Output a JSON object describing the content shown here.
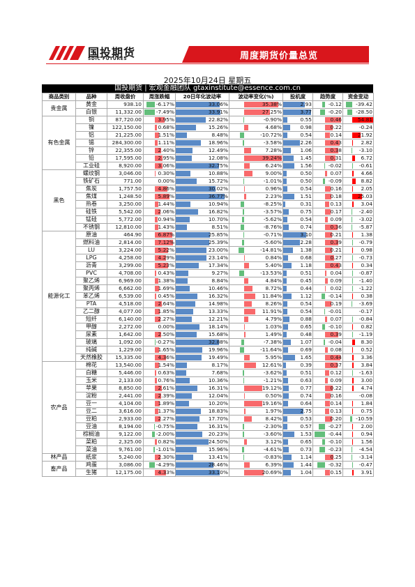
{
  "header": {
    "brand_name": "国投期货",
    "brand_sub": "SDIC FUTURES",
    "report_title": "周度期货价量总览",
    "date": "2025年10月24日 星期五",
    "banner": "国投期货 | 宏观金融团队 gtaxinstitute@essence.com.cn"
  },
  "colors": {
    "brand_red": "#d9161c",
    "pos_red": "#f8696b",
    "neg_green": "#63be7b",
    "blue_bar": "#5a8ac6",
    "fund_red": "#ff0000",
    "fund_green": "#63be7b"
  },
  "columns": [
    "商品类别",
    "品种",
    "周收盘价",
    "周涨跌幅",
    "20日年化波动率",
    "波动率变化(%)",
    "投机度",
    "趋势度",
    "资金变动"
  ],
  "rows": [
    {
      "cat": "贵金属",
      "name": "黄金",
      "price": "938.10",
      "chg": -6.17,
      "vol": 33.06,
      "vchg": 35.38,
      "spec": 2.93,
      "trend": -0.12,
      "fund": -39.42
    },
    {
      "cat": "",
      "name": "白银",
      "price": "11,332.00",
      "chg": -7.49,
      "vol": 33.91,
      "vchg": 27.25,
      "spec": 3.77,
      "trend": -0.2,
      "fund": -28.5
    },
    {
      "cat": "有色金属",
      "name": "铜",
      "price": "87,720.00",
      "chg": 3.95,
      "vol": 22.82,
      "vchg": -0.9,
      "spec": 0.55,
      "trend": 0.46,
      "fund": 54.81
    },
    {
      "cat": "",
      "name": "镍",
      "price": "122,150.00",
      "chg": 0.68,
      "vol": 15.26,
      "vchg": 4.68,
      "spec": 0.98,
      "trend": 0.22,
      "fund": -0.24
    },
    {
      "cat": "",
      "name": "铝",
      "price": "21,225.00",
      "chg": 1.51,
      "vol": 8.48,
      "vchg": -10.72,
      "spec": 0.54,
      "trend": 0.14,
      "fund": 21.92
    },
    {
      "cat": "",
      "name": "锡",
      "price": "284,300.00",
      "chg": 1.11,
      "vol": 18.96,
      "vchg": -3.58,
      "spec": 2.26,
      "trend": 0.43,
      "fund": 2.82
    },
    {
      "cat": "",
      "name": "锌",
      "price": "22,355.00",
      "chg": 2.4,
      "vol": 12.49,
      "vchg": 7.28,
      "spec": 1.06,
      "trend": 0.38,
      "fund": -3.1
    },
    {
      "cat": "",
      "name": "铅",
      "price": "17,595.00",
      "chg": 2.95,
      "vol": 12.08,
      "vchg": 39.24,
      "spec": 1.45,
      "trend": 0.31,
      "fund": 6.72
    },
    {
      "cat": "",
      "name": "工业硅",
      "price": "8,920.00",
      "chg": 3.06,
      "vol": 32.75,
      "vchg": 6.24,
      "spec": 1.56,
      "trend": -0.02,
      "fund": -0.61
    },
    {
      "cat": "黑色",
      "name": "螺纹钢",
      "price": "3,046.00",
      "chg": 0.3,
      "vol": 10.88,
      "vchg": 9.0,
      "spec": 0.5,
      "trend": 0.07,
      "fund": 4.66
    },
    {
      "cat": "",
      "name": "铁矿石",
      "price": "771.00",
      "chg": 0.0,
      "vol": 15.72,
      "vchg": -1.01,
      "spec": 0.5,
      "trend": -0.09,
      "fund": 8.82
    },
    {
      "cat": "",
      "name": "焦炭",
      "price": "1,757.50",
      "chg": 4.86,
      "vol": 30.02,
      "vchg": 0.96,
      "spec": 0.54,
      "trend": 0.16,
      "fund": 2.05
    },
    {
      "cat": "",
      "name": "焦煤",
      "price": "1,248.50",
      "chg": 5.89,
      "vol": 36.77,
      "vchg": 2.23,
      "spec": 1.51,
      "trend": 0.18,
      "fund": 25.03
    },
    {
      "cat": "",
      "name": "热卷",
      "price": "3,250.00",
      "chg": 1.44,
      "vol": 10.94,
      "vchg": -8.25,
      "spec": 0.31,
      "trend": 0.13,
      "fund": 3.04
    },
    {
      "cat": "",
      "name": "硅铁",
      "price": "5,542.00",
      "chg": 2.06,
      "vol": 16.82,
      "vchg": -3.57,
      "spec": 0.75,
      "trend": 0.17,
      "fund": -2.4
    },
    {
      "cat": "",
      "name": "锰硅",
      "price": "5,772.00",
      "chg": 0.94,
      "vol": 10.7,
      "vchg": -5.62,
      "spec": 0.54,
      "trend": 0.09,
      "fund": -3.02
    },
    {
      "cat": "",
      "name": "不锈钢",
      "price": "12,810.00",
      "chg": 1.43,
      "vol": 8.51,
      "vchg": -8.76,
      "spec": 0.74,
      "trend": 0.36,
      "fund": -5.87
    },
    {
      "cat": "能源化工",
      "name": "原油",
      "price": "464.90",
      "chg": 6.87,
      "vol": 25.85,
      "vchg": -0.71,
      "spec": 3.1,
      "trend": 0.21,
      "fund": 1.38
    },
    {
      "cat": "",
      "name": "燃料油",
      "price": "2,814.00",
      "chg": 7.12,
      "vol": 25.39,
      "vchg": -5.6,
      "spec": 2.28,
      "trend": 0.39,
      "fund": -0.79
    },
    {
      "cat": "",
      "name": "LU",
      "price": "3,224.00",
      "chg": 5.22,
      "vol": 23.0,
      "vchg": -14.81,
      "spec": 1.38,
      "trend": 0.21,
      "fund": 0.98
    },
    {
      "cat": "",
      "name": "LPG",
      "price": "4,258.00",
      "chg": 4.29,
      "vol": 23.14,
      "vchg": 0.84,
      "spec": 0.68,
      "trend": 0.27,
      "fund": -0.73
    },
    {
      "cat": "",
      "name": "沥青",
      "price": "3,299.00",
      "chg": 5.23,
      "vol": 17.34,
      "vchg": 5.4,
      "spec": 1.18,
      "trend": 0.43,
      "fund": 0.34
    },
    {
      "cat": "",
      "name": "PVC",
      "price": "4,708.00",
      "chg": 0.43,
      "vol": 9.27,
      "vchg": -13.53,
      "spec": 0.51,
      "trend": 0.04,
      "fund": -0.87
    },
    {
      "cat": "",
      "name": "聚乙烯",
      "price": "6,969.00",
      "chg": 1.38,
      "vol": 8.84,
      "vchg": 4.84,
      "spec": 0.45,
      "trend": 0.09,
      "fund": -1.4
    },
    {
      "cat": "",
      "name": "聚丙烯",
      "price": "6,662.00",
      "chg": 1.69,
      "vol": 10.46,
      "vchg": 8.72,
      "spec": 0.44,
      "trend": 0.02,
      "fund": -1.22
    },
    {
      "cat": "",
      "name": "苯乙烯",
      "price": "6,539.00",
      "chg": 0.45,
      "vol": 16.32,
      "vchg": 11.84,
      "spec": 1.12,
      "trend": -0.14,
      "fund": 0.38
    },
    {
      "cat": "",
      "name": "PTA",
      "price": "4,518.00",
      "chg": 2.64,
      "vol": 14.98,
      "vchg": 8.26,
      "spec": 0.54,
      "trend": 0.19,
      "fund": -3.69
    },
    {
      "cat": "",
      "name": "乙二醇",
      "price": "4,077.00",
      "chg": 1.85,
      "vol": 13.33,
      "vchg": 11.91,
      "spec": 0.54,
      "trend": -0.01,
      "fund": -0.17
    },
    {
      "cat": "",
      "name": "短纤",
      "price": "6,140.00",
      "chg": 2.27,
      "vol": 12.21,
      "vchg": 4.79,
      "spec": 0.88,
      "trend": 0.07,
      "fund": -0.84
    },
    {
      "cat": "",
      "name": "甲醇",
      "price": "2,272.00",
      "chg": 0.0,
      "vol": 18.14,
      "vchg": 1.03,
      "spec": 0.65,
      "trend": -0.1,
      "fund": 0.82
    },
    {
      "cat": "",
      "name": "尿素",
      "price": "1,642.00",
      "chg": 2.5,
      "vol": 15.68,
      "vchg": 1.49,
      "spec": 0.48,
      "trend": 0.39,
      "fund": -1.19
    },
    {
      "cat": "",
      "name": "玻璃",
      "price": "1,092.00",
      "chg": -0.27,
      "vol": 32.88,
      "vchg": -7.38,
      "spec": 1.07,
      "trend": -0.04,
      "fund": 8.3
    },
    {
      "cat": "",
      "name": "纯碱",
      "price": "1,229.00",
      "chg": 1.65,
      "vol": 19.96,
      "vchg": -11.64,
      "spec": 0.69,
      "trend": 0.08,
      "fund": 0.52
    },
    {
      "cat": "",
      "name": "天然橡胶",
      "price": "15,335.00",
      "chg": 4.36,
      "vol": 19.49,
      "vchg": 5.95,
      "spec": 1.65,
      "trend": 0.44,
      "fund": 3.36
    },
    {
      "cat": "农产品",
      "name": "棉花",
      "price": "13,540.00",
      "chg": 1.54,
      "vol": 8.17,
      "vchg": 12.61,
      "spec": 0.39,
      "trend": 0.37,
      "fund": 3.84
    },
    {
      "cat": "",
      "name": "白糖",
      "price": "5,446.00",
      "chg": 0.63,
      "vol": 7.68,
      "vchg": -3.62,
      "spec": 0.51,
      "trend": 0.12,
      "fund": -1.63
    },
    {
      "cat": "",
      "name": "玉米",
      "price": "2,133.00",
      "chg": 0.76,
      "vol": 10.36,
      "vchg": -1.21,
      "spec": 0.63,
      "trend": 0.09,
      "fund": 3.0
    },
    {
      "cat": "",
      "name": "苹果",
      "price": "8,850.00",
      "chg": 2.61,
      "vol": 16.31,
      "vchg": 19.12,
      "spec": 0.77,
      "trend": 0.22,
      "fund": 4.74
    },
    {
      "cat": "",
      "name": "淀粉",
      "price": "2,441.00",
      "chg": 2.39,
      "vol": 12.04,
      "vchg": 0.5,
      "spec": 0.74,
      "trend": 0.16,
      "fund": -0.08
    },
    {
      "cat": "",
      "name": "豆一",
      "price": "4,104.00",
      "chg": 1.89,
      "vol": 10.2,
      "vchg": 19.16,
      "spec": 0.64,
      "trend": 0.14,
      "fund": 1.84
    },
    {
      "cat": "",
      "name": "豆二",
      "price": "3,616.00",
      "chg": 1.37,
      "vol": 18.83,
      "vchg": 1.97,
      "spec": 2.75,
      "trend": 0.13,
      "fund": 0.75
    },
    {
      "cat": "",
      "name": "豆粕",
      "price": "2,933.00",
      "chg": 2.27,
      "vol": 17.7,
      "vchg": 8.42,
      "spec": 0.53,
      "trend": 0.2,
      "fund": -10.59
    },
    {
      "cat": "",
      "name": "豆油",
      "price": "8,194.00",
      "chg": -0.75,
      "vol": 16.31,
      "vchg": -2.3,
      "spec": 0.57,
      "trend": -0.27,
      "fund": 2.0
    },
    {
      "cat": "",
      "name": "棕榈油",
      "price": "9,122.00",
      "chg": -2.0,
      "vol": 20.23,
      "vchg": -3.6,
      "spec": 1.53,
      "trend": -0.44,
      "fund": 0.94
    },
    {
      "cat": "",
      "name": "菜粕",
      "price": "2,325.00",
      "chg": 0.82,
      "vol": 24.5,
      "vchg": 3.12,
      "spec": 0.65,
      "trend": -0.1,
      "fund": 1.56
    },
    {
      "cat": "",
      "name": "菜油",
      "price": "9,761.00",
      "chg": -1.01,
      "vol": 15.96,
      "vchg": -4.61,
      "spec": 0.73,
      "trend": -0.23,
      "fund": -4.54
    },
    {
      "cat": "林产品",
      "name": "纸浆",
      "price": "5,240.00",
      "chg": 2.3,
      "vol": 13.41,
      "vchg": -0.83,
      "spec": 1.14,
      "trend": 0.25,
      "fund": -3.14
    },
    {
      "cat": "畜产品",
      "name": "鸡蛋",
      "price": "3,086.00",
      "chg": -4.29,
      "vol": 28.46,
      "vchg": 6.39,
      "spec": 1.44,
      "trend": -0.32,
      "fund": -0.47
    },
    {
      "cat": "",
      "name": "生猪",
      "price": "12,175.00",
      "chg": 4.33,
      "vol": 33.1,
      "vchg": 20.69,
      "spec": 1.04,
      "trend": 0.15,
      "fund": 3.91
    }
  ]
}
